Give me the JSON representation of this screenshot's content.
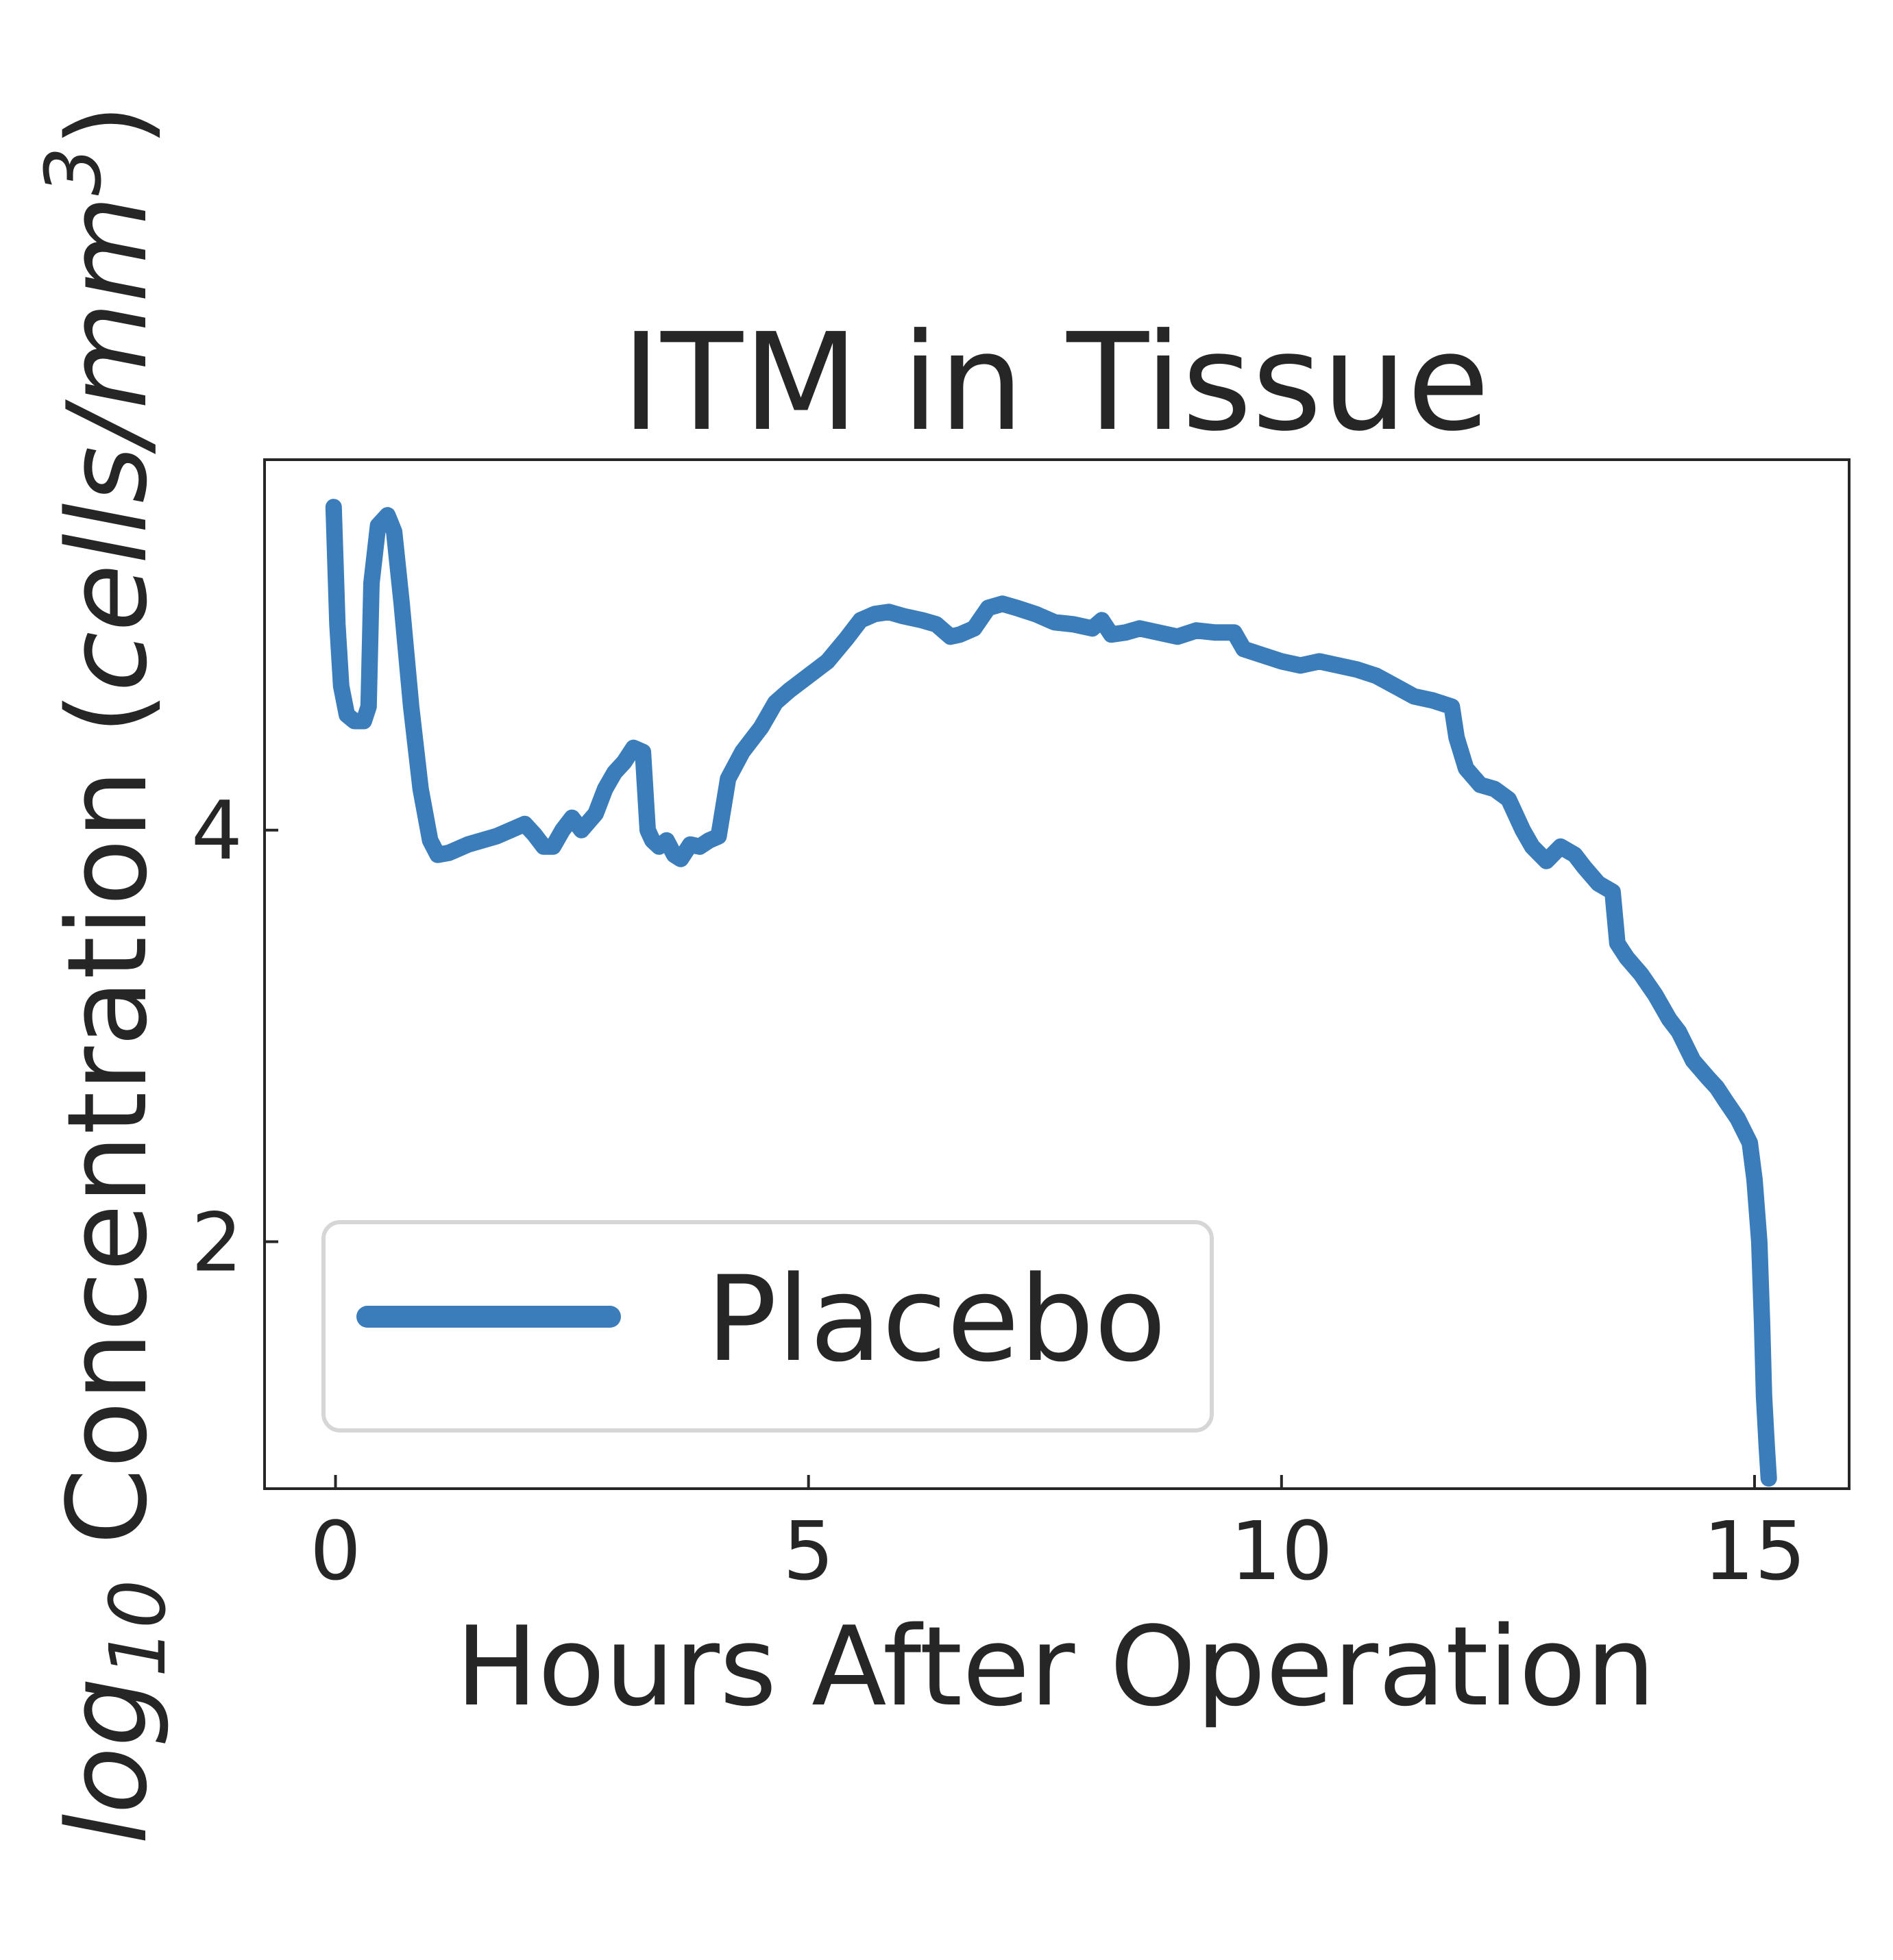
{
  "chart_data": {
    "type": "line",
    "title": "ITM in Tissue",
    "xlabel": "Hours After Operation",
    "ylabel_parts": {
      "base": "log",
      "subscript": "10",
      "body": " Concentration (",
      "unit": "cells/mm",
      "superscript": "3",
      "close": ")"
    },
    "xlim": [
      -0.75,
      16.0
    ],
    "ylim": [
      0.8,
      5.8
    ],
    "xticks": [
      0,
      5,
      10,
      15
    ],
    "xtick_labels": [
      "0",
      "5",
      "10",
      "15"
    ],
    "yticks": [
      2,
      4
    ],
    "ytick_labels": [
      "2",
      "4"
    ],
    "grid": false,
    "legend": {
      "position": "lower-left",
      "entries": [
        "Placebo"
      ]
    },
    "series": [
      {
        "name": "Placebo",
        "color": "#3a7dba",
        "points": [
          [
            -0.02,
            5.57
          ],
          [
            0.02,
            5.0
          ],
          [
            0.06,
            4.7
          ],
          [
            0.12,
            4.56
          ],
          [
            0.2,
            4.53
          ],
          [
            0.3,
            4.53
          ],
          [
            0.35,
            4.6
          ],
          [
            0.38,
            5.2
          ],
          [
            0.45,
            5.48
          ],
          [
            0.55,
            5.53
          ],
          [
            0.62,
            5.45
          ],
          [
            0.7,
            5.1
          ],
          [
            0.8,
            4.6
          ],
          [
            0.9,
            4.2
          ],
          [
            1.0,
            3.95
          ],
          [
            1.08,
            3.88
          ],
          [
            1.2,
            3.89
          ],
          [
            1.4,
            3.93
          ],
          [
            1.55,
            3.95
          ],
          [
            1.7,
            3.97
          ],
          [
            1.85,
            4.0
          ],
          [
            2.0,
            4.03
          ],
          [
            2.1,
            3.98
          ],
          [
            2.2,
            3.92
          ],
          [
            2.3,
            3.92
          ],
          [
            2.4,
            4.0
          ],
          [
            2.5,
            4.06
          ],
          [
            2.6,
            4.0
          ],
          [
            2.75,
            4.08
          ],
          [
            2.85,
            4.2
          ],
          [
            2.95,
            4.28
          ],
          [
            3.05,
            4.33
          ],
          [
            3.15,
            4.4
          ],
          [
            3.25,
            4.38
          ],
          [
            3.3,
            4.0
          ],
          [
            3.35,
            3.95
          ],
          [
            3.42,
            3.92
          ],
          [
            3.5,
            3.95
          ],
          [
            3.58,
            3.88
          ],
          [
            3.65,
            3.86
          ],
          [
            3.75,
            3.93
          ],
          [
            3.85,
            3.92
          ],
          [
            3.95,
            3.95
          ],
          [
            4.05,
            3.97
          ],
          [
            4.15,
            4.25
          ],
          [
            4.3,
            4.38
          ],
          [
            4.5,
            4.5
          ],
          [
            4.65,
            4.62
          ],
          [
            4.8,
            4.68
          ],
          [
            5.0,
            4.75
          ],
          [
            5.2,
            4.82
          ],
          [
            5.4,
            4.93
          ],
          [
            5.55,
            5.02
          ],
          [
            5.7,
            5.05
          ],
          [
            5.85,
            5.06
          ],
          [
            6.0,
            5.04
          ],
          [
            6.2,
            5.02
          ],
          [
            6.35,
            5.0
          ],
          [
            6.5,
            4.94
          ],
          [
            6.6,
            4.95
          ],
          [
            6.75,
            4.98
          ],
          [
            6.9,
            5.08
          ],
          [
            7.05,
            5.1
          ],
          [
            7.2,
            5.08
          ],
          [
            7.4,
            5.05
          ],
          [
            7.6,
            5.01
          ],
          [
            7.8,
            5.0
          ],
          [
            8.0,
            4.98
          ],
          [
            8.1,
            5.02
          ],
          [
            8.2,
            4.95
          ],
          [
            8.35,
            4.96
          ],
          [
            8.5,
            4.98
          ],
          [
            8.7,
            4.96
          ],
          [
            8.9,
            4.94
          ],
          [
            9.1,
            4.97
          ],
          [
            9.3,
            4.96
          ],
          [
            9.5,
            4.96
          ],
          [
            9.6,
            4.88
          ],
          [
            9.8,
            4.85
          ],
          [
            10.0,
            4.82
          ],
          [
            10.2,
            4.8
          ],
          [
            10.4,
            4.82
          ],
          [
            10.6,
            4.8
          ],
          [
            10.8,
            4.78
          ],
          [
            11.0,
            4.75
          ],
          [
            11.2,
            4.7
          ],
          [
            11.4,
            4.65
          ],
          [
            11.6,
            4.63
          ],
          [
            11.8,
            4.6
          ],
          [
            11.85,
            4.45
          ],
          [
            11.95,
            4.3
          ],
          [
            12.1,
            4.22
          ],
          [
            12.25,
            4.2
          ],
          [
            12.4,
            4.15
          ],
          [
            12.55,
            4.0
          ],
          [
            12.65,
            3.92
          ],
          [
            12.8,
            3.85
          ],
          [
            12.95,
            3.92
          ],
          [
            13.1,
            3.88
          ],
          [
            13.2,
            3.82
          ],
          [
            13.35,
            3.74
          ],
          [
            13.5,
            3.7
          ],
          [
            13.55,
            3.45
          ],
          [
            13.65,
            3.38
          ],
          [
            13.8,
            3.3
          ],
          [
            13.95,
            3.2
          ],
          [
            14.1,
            3.08
          ],
          [
            14.2,
            3.02
          ],
          [
            14.35,
            2.88
          ],
          [
            14.5,
            2.8
          ],
          [
            14.6,
            2.75
          ],
          [
            14.7,
            2.68
          ],
          [
            14.82,
            2.6
          ],
          [
            14.95,
            2.48
          ],
          [
            15.0,
            2.3
          ],
          [
            15.05,
            2.0
          ],
          [
            15.08,
            1.6
          ],
          [
            15.1,
            1.25
          ],
          [
            15.13,
            1.0
          ],
          [
            15.15,
            0.85
          ]
        ]
      }
    ]
  }
}
